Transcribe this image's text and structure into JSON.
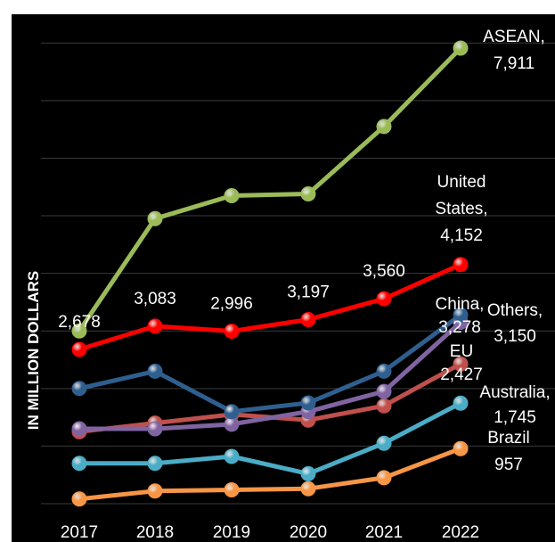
{
  "chart_data": {
    "type": "line",
    "title": "",
    "xlabel": "",
    "ylabel": "IN MILLION DOLLARS",
    "ylim": [
      0,
      8500
    ],
    "grid": true,
    "x": [
      "2017",
      "2018",
      "2019",
      "2020",
      "2021",
      "2022"
    ],
    "series": [
      {
        "name": "ASEAN",
        "color": "#9bbb59",
        "values": [
          3000,
          4950,
          5350,
          5380,
          6550,
          7911
        ]
      },
      {
        "name": "United States",
        "color": "#ff0000",
        "values": [
          2678,
          3083,
          2996,
          3197,
          3560,
          4152
        ]
      },
      {
        "name": "China",
        "color": "#2f5f8f",
        "values": [
          2000,
          2300,
          1600,
          1750,
          2300,
          3278
        ]
      },
      {
        "name": "Others",
        "color": "#8064a2",
        "values": [
          1300,
          1300,
          1380,
          1600,
          1950,
          3150
        ]
      },
      {
        "name": "EU",
        "color": "#c0504d",
        "values": [
          1250,
          1400,
          1550,
          1450,
          1700,
          2427
        ]
      },
      {
        "name": "Australia",
        "color": "#4bacc6",
        "values": [
          700,
          700,
          820,
          520,
          1050,
          1745
        ]
      },
      {
        "name": "Brazil",
        "color": "#f79646",
        "values": [
          80,
          220,
          240,
          260,
          450,
          957
        ]
      }
    ],
    "data_labels": [
      {
        "text": "2,678",
        "series": "United States",
        "x": "2017"
      },
      {
        "text": "3,083",
        "series": "United States",
        "x": "2018"
      },
      {
        "text": "2,996",
        "series": "United States",
        "x": "2019"
      },
      {
        "text": "3,197",
        "series": "United States",
        "x": "2020"
      },
      {
        "text": "3,560",
        "series": "United States",
        "x": "2021"
      }
    ],
    "end_labels": [
      {
        "series": "ASEAN",
        "lines": [
          "ASEAN,",
          "7,911"
        ]
      },
      {
        "series": "United States",
        "lines": [
          "United",
          "States,",
          "4,152"
        ]
      },
      {
        "series": "China",
        "lines": [
          "China,",
          "3,278"
        ]
      },
      {
        "series": "Others",
        "lines": [
          "Others,",
          "3,150"
        ]
      },
      {
        "series": "EU",
        "lines": [
          "EU",
          "2,427"
        ]
      },
      {
        "series": "Australia",
        "lines": [
          "Australia,",
          "1,745"
        ]
      },
      {
        "series": "Brazil",
        "lines": [
          "Brazil",
          "957"
        ]
      }
    ]
  }
}
